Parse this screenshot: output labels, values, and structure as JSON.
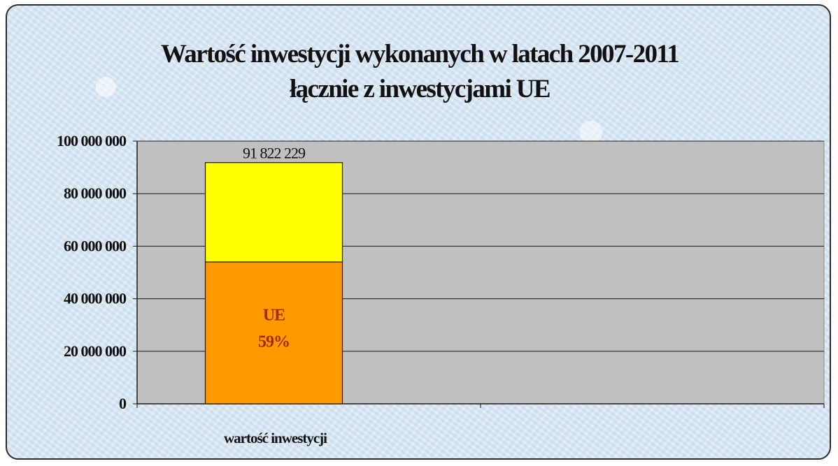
{
  "chart_data": {
    "type": "bar",
    "stacked": true,
    "title": "Wartość inwestycji wykonanych w latach 2007-2011",
    "subtitle": "łącznie z inwestycjami UE",
    "categories": [
      "wartość inwestycji"
    ],
    "series": [
      {
        "values": [
          54000000
        ],
        "color": "#ff9900",
        "label_lines": [
          "UE",
          "59%"
        ]
      },
      {
        "values": [
          37822229
        ],
        "color": "#ffff00"
      }
    ],
    "total_labels": [
      "91 822 229"
    ],
    "ylim": [
      0,
      100000000
    ],
    "yticks": [
      0,
      20000000,
      40000000,
      60000000,
      80000000,
      100000000
    ],
    "ytick_labels": [
      "0",
      "20 000 000",
      "40 000 000",
      "60 000 000",
      "80 000 000",
      "100 000 000"
    ],
    "grid": true,
    "plot_background": "#c0c0c0",
    "legend": "none"
  }
}
